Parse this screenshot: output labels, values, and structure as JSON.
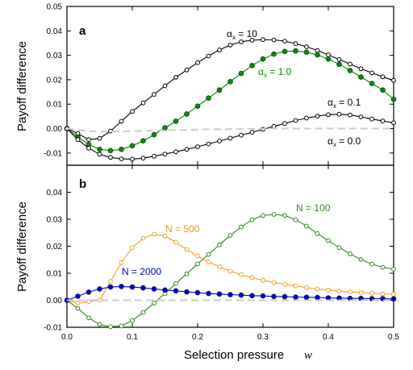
{
  "chart_data": [
    {
      "panel": "a",
      "type": "line",
      "ylabel": "Payoff difference",
      "xlabel": "",
      "xlim": [
        0,
        0.5
      ],
      "ylim": [
        -0.015,
        0.05
      ],
      "yticks": [
        "-0.01",
        "0.00",
        "0.01",
        "0.02",
        "0.03",
        "0.04",
        "0.05"
      ],
      "x": [
        0,
        0.0167,
        0.0333,
        0.05,
        0.0667,
        0.0833,
        0.1,
        0.1167,
        0.1333,
        0.15,
        0.1667,
        0.1833,
        0.2,
        0.2167,
        0.2333,
        0.25,
        0.2667,
        0.2833,
        0.3,
        0.3167,
        0.3333,
        0.35,
        0.3667,
        0.3833,
        0.4,
        0.4167,
        0.4333,
        0.45,
        0.4667,
        0.4833,
        0.5
      ],
      "series": [
        {
          "name_main": "α",
          "name_sub": "x",
          "name_rest": " = 10",
          "color": "#000000",
          "marker": "open",
          "values": [
            0.0,
            -0.002,
            -0.0045,
            -0.004,
            -0.001,
            0.003,
            0.007,
            0.0105,
            0.014,
            0.0175,
            0.021,
            0.024,
            0.027,
            0.0297,
            0.0322,
            0.0342,
            0.0355,
            0.0362,
            0.0364,
            0.0363,
            0.0358,
            0.0348,
            0.0335,
            0.032,
            0.0302,
            0.0283,
            0.0264,
            0.0245,
            0.0228,
            0.0212,
            0.0197
          ]
        },
        {
          "name_main": "α",
          "name_sub": "x",
          "name_rest": " = 1.0",
          "color": "#008c00",
          "marker": "filled",
          "values": [
            0.0,
            -0.0035,
            -0.0065,
            -0.0085,
            -0.009,
            -0.0085,
            -0.007,
            -0.005,
            -0.0025,
            0.0003,
            0.003,
            0.006,
            0.0092,
            0.0125,
            0.0158,
            0.0192,
            0.0226,
            0.0258,
            0.0285,
            0.0305,
            0.0316,
            0.0318,
            0.0313,
            0.0302,
            0.0285,
            0.0263,
            0.0238,
            0.0211,
            0.0185,
            0.0158,
            0.012
          ]
        },
        {
          "name_main": "α",
          "name_sub": "x",
          "name_rest": " = 0.1",
          "color": "#000000",
          "marker": "open",
          "values": [
            0.0,
            -0.0045,
            -0.008,
            -0.0105,
            -0.0118,
            -0.0124,
            -0.0125,
            -0.0121,
            -0.0113,
            -0.0104,
            -0.0095,
            -0.0085,
            -0.0074,
            -0.0063,
            -0.0051,
            -0.0039,
            -0.0027,
            -0.0015,
            -0.0003,
            0.0009,
            0.0021,
            0.0033,
            0.0043,
            0.0051,
            0.0057,
            0.0059,
            0.0056,
            0.0048,
            0.0039,
            0.0031,
            0.0024
          ]
        },
        {
          "name_main": "α",
          "name_sub": "x",
          "name_rest": " = 0.0",
          "color": "#cccccc",
          "marker": "none",
          "dashed": true,
          "values": [
            0,
            -0.0005,
            -0.001,
            -0.0012,
            -0.0012,
            -0.0011,
            -0.001,
            -0.0009,
            -0.0008,
            -0.0007,
            -0.0006,
            -0.0005,
            -0.0004,
            -0.0003,
            -0.0003,
            -0.0002,
            -0.0002,
            -0.0001,
            -0.0001,
            0,
            0,
            0,
            0,
            0,
            0,
            0,
            0,
            0,
            0,
            0,
            0
          ]
        }
      ]
    },
    {
      "panel": "b",
      "type": "line",
      "ylabel": "Payoff difference",
      "xlabel": "Selection pressure",
      "xlabel_var": "w",
      "xlim": [
        0,
        0.5
      ],
      "ylim": [
        -0.01,
        0.05
      ],
      "yticks": [
        "-0.01",
        "0.00",
        "0.01",
        "0.02",
        "0.03",
        "0.04"
      ],
      "xticks": [
        "0.0",
        "0.1",
        "0.2",
        "0.3",
        "0.4",
        "0.5"
      ],
      "x": [
        0,
        0.0167,
        0.0333,
        0.05,
        0.0667,
        0.0833,
        0.1,
        0.1167,
        0.1333,
        0.15,
        0.1667,
        0.1833,
        0.2,
        0.2167,
        0.2333,
        0.25,
        0.2667,
        0.2833,
        0.3,
        0.3167,
        0.3333,
        0.35,
        0.3667,
        0.3833,
        0.4,
        0.4167,
        0.4333,
        0.45,
        0.4667,
        0.4833,
        0.5
      ],
      "series": [
        {
          "name": "N = 100",
          "color": "#2e8b1e",
          "marker": "open",
          "values": [
            0,
            -0.003,
            -0.0065,
            -0.009,
            -0.0098,
            -0.0095,
            -0.0075,
            -0.0045,
            -0.001,
            0.0025,
            0.0062,
            0.0098,
            0.0135,
            0.017,
            0.0205,
            0.024,
            0.0272,
            0.0298,
            0.0314,
            0.0318,
            0.0314,
            0.0298,
            0.0275,
            0.0247,
            0.0221,
            0.0195,
            0.0172,
            0.0151,
            0.0134,
            0.0122,
            0.0115
          ]
        },
        {
          "name": "N =  500",
          "color": "#f0a020",
          "marker": "open",
          "values": [
            0,
            -0.001,
            -0.0005,
            0.0,
            0.007,
            0.014,
            0.0195,
            0.023,
            0.0245,
            0.0238,
            0.0215,
            0.0188,
            0.0164,
            0.0142,
            0.0124,
            0.0108,
            0.0095,
            0.0084,
            0.0074,
            0.0066,
            0.0059,
            0.0053,
            0.0047,
            0.0042,
            0.0038,
            0.0034,
            0.0031,
            0.0028,
            0.0026,
            0.0024,
            0.0022
          ]
        },
        {
          "name": "N = 2000",
          "color": "#0000d0",
          "marker": "filled",
          "values": [
            0,
            0.0015,
            0.003,
            0.0042,
            0.0049,
            0.0051,
            0.0049,
            0.0046,
            0.0042,
            0.0038,
            0.0035,
            0.0031,
            0.0028,
            0.0025,
            0.0023,
            0.0021,
            0.0019,
            0.0017,
            0.0016,
            0.0014,
            0.0013,
            0.0012,
            0.0011,
            0.001,
            0.0009,
            0.0008,
            0.0007,
            0.0007,
            0.0006,
            0.0006,
            0.0005
          ]
        },
        {
          "name": "",
          "color": "#cccccc",
          "marker": "none",
          "dashed": true,
          "values": [
            0,
            0,
            0,
            0,
            0,
            0,
            0,
            0,
            0,
            0,
            0,
            0,
            0,
            0,
            0,
            0,
            0,
            0,
            0,
            0,
            0,
            0,
            0,
            0,
            0,
            0,
            0,
            0,
            0,
            0,
            0
          ]
        }
      ]
    }
  ]
}
